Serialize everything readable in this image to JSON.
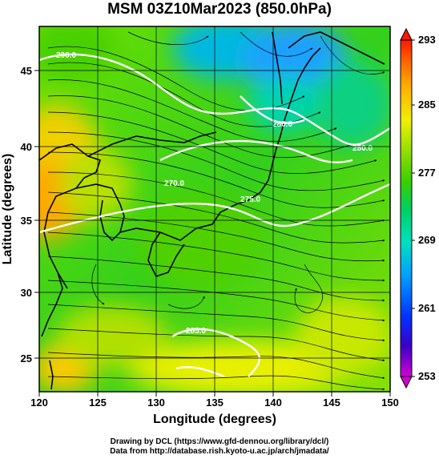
{
  "title": "MSM 03Z10Mar2023 (850.0hPa)",
  "axes": {
    "xlabel": "Longitude (degrees)",
    "ylabel": "Latitude  (degrees)",
    "xticks": [
      "120",
      "125",
      "130",
      "135",
      "140",
      "145",
      "150"
    ],
    "yticks": [
      "25",
      "30",
      "35",
      "40",
      "45"
    ],
    "xrange": [
      120,
      150
    ],
    "yrange": [
      22.4,
      47.6
    ]
  },
  "colorbar": {
    "ticks": [
      "293",
      "285",
      "277",
      "269",
      "261",
      "253"
    ],
    "range": [
      253,
      293
    ],
    "colors": [
      "#d400d4",
      "#3a00c8",
      "#0033ff",
      "#00a0ff",
      "#00e0c0",
      "#00d060",
      "#3ad000",
      "#9ee000",
      "#f0f000",
      "#ffb000",
      "#ff6000",
      "#ff1800"
    ]
  },
  "map_labels": {
    "contour_labels": [
      "290.0",
      "280.0",
      "280.0",
      "270.0",
      "275.0",
      "285.0"
    ]
  },
  "credits": {
    "line1": "Drawing by DCL (https://www.gfd-dennou.org/library/dcl/)",
    "line2": "Data from http://database.rish.kyoto-u.ac.jp/arch/jmadata/"
  }
}
